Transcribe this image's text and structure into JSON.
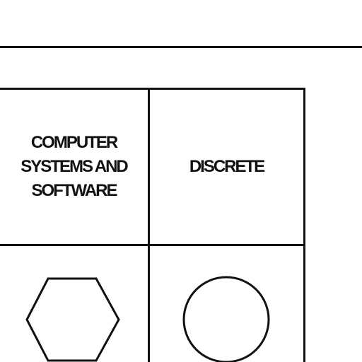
{
  "legend": {
    "columns": [
      {
        "label": "COMPUTER\nSYSTEMS AND\nSOFTWARE",
        "symbol": "hexagon"
      },
      {
        "label": "DISCRETE",
        "symbol": "circle"
      }
    ]
  },
  "colors": {
    "line": "#111111",
    "background": "#ffffff"
  }
}
